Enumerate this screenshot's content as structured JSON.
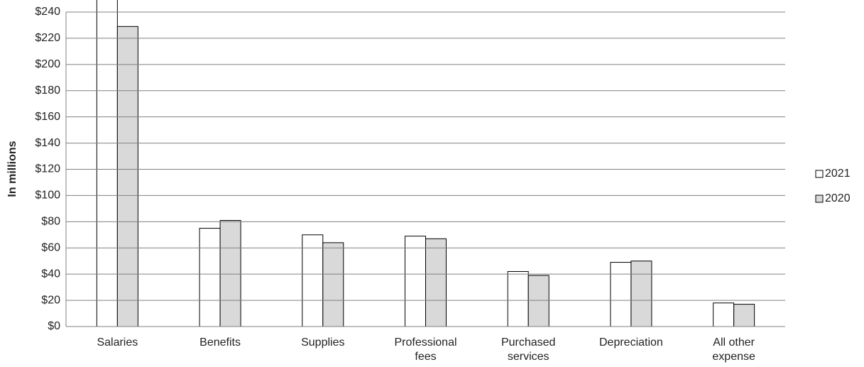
{
  "chart_data": {
    "type": "bar",
    "y_label": "In millions",
    "categories": [
      "Salaries",
      "Benefits",
      "Supplies",
      "Professional fees",
      "Purchased services",
      "Depreciation",
      "All other expense"
    ],
    "series": [
      {
        "name": "2021",
        "color": "#ffffff",
        "values": [
          250,
          75,
          70,
          69,
          42,
          49,
          18
        ]
      },
      {
        "name": "2020",
        "color": "#d9d9d9",
        "values": [
          229,
          81,
          64,
          67,
          39,
          50,
          17
        ]
      }
    ],
    "ylim": [
      0,
      240
    ],
    "yticks": [
      {
        "value": 0,
        "label": "$0"
      },
      {
        "value": 20,
        "label": "$20"
      },
      {
        "value": 40,
        "label": "$40"
      },
      {
        "value": 60,
        "label": "$60"
      },
      {
        "value": 80,
        "label": "$80"
      },
      {
        "value": 100,
        "label": "$100"
      },
      {
        "value": 120,
        "label": "$120"
      },
      {
        "value": 140,
        "label": "$140"
      },
      {
        "value": 160,
        "label": "$160"
      },
      {
        "value": 180,
        "label": "$180"
      },
      {
        "value": 200,
        "label": "$200"
      },
      {
        "value": 220,
        "label": "$220"
      },
      {
        "value": 240,
        "label": "$240"
      }
    ],
    "grid": true,
    "legend": "right"
  }
}
